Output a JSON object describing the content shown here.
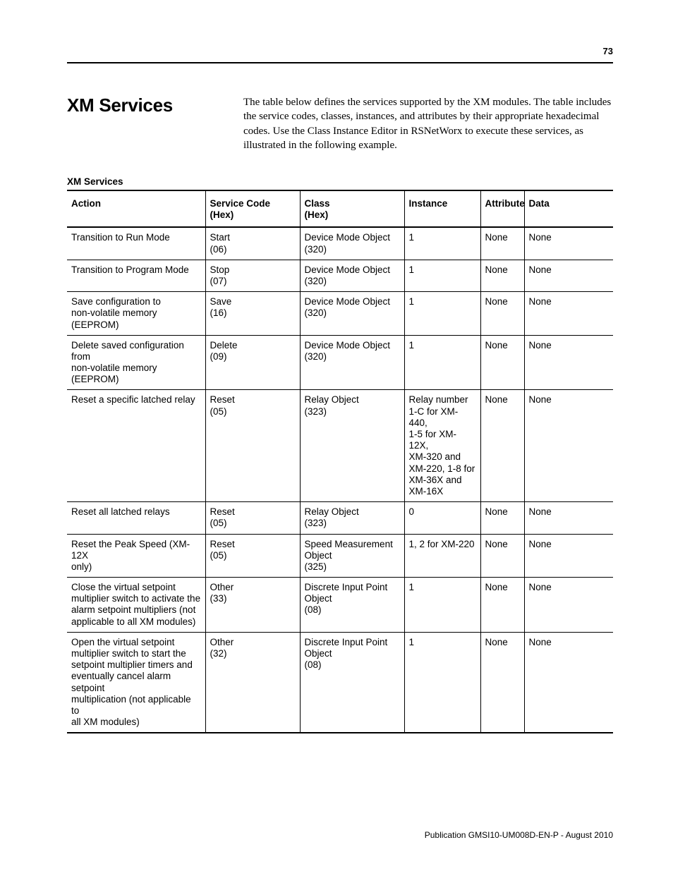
{
  "page_number": "73",
  "section_title": "XM Services",
  "intro_paragraph": "The table below defines the services supported by the XM modules. The table includes the service codes, classes, instances, and attributes by their appropriate hexadecimal codes. Use the Class Instance Editor in RSNetWorx to execute these services, as illustrated in the following example.",
  "table_caption": "XM Services",
  "publication_line": "Publication GMSI10-UM008D-EN-P - August 2010",
  "columns": [
    {
      "label_line1": "Action",
      "label_line2": ""
    },
    {
      "label_line1": "Service Code",
      "label_line2": "(Hex)"
    },
    {
      "label_line1": "Class",
      "label_line2": "(Hex)"
    },
    {
      "label_line1": "Instance",
      "label_line2": ""
    },
    {
      "label_line1": "Attribute",
      "label_line2": ""
    },
    {
      "label_line1": "Data",
      "label_line2": ""
    }
  ],
  "rows": [
    {
      "action": [
        "Transition to Run Mode"
      ],
      "service": [
        "Start",
        "(06)"
      ],
      "class": [
        "Device Mode Object",
        "(320)"
      ],
      "instance": [
        "1"
      ],
      "attribute": [
        "None"
      ],
      "data": [
        "None"
      ]
    },
    {
      "action": [
        "Transition to Program Mode"
      ],
      "service": [
        "Stop",
        "(07)"
      ],
      "class": [
        "Device Mode Object",
        "(320)"
      ],
      "instance": [
        "1"
      ],
      "attribute": [
        "None"
      ],
      "data": [
        "None"
      ]
    },
    {
      "action": [
        "Save configuration to",
        "non-volatile memory (EEPROM)"
      ],
      "service": [
        "Save",
        "(16)"
      ],
      "class": [
        "Device Mode Object",
        "(320)"
      ],
      "instance": [
        "1"
      ],
      "attribute": [
        "None"
      ],
      "data": [
        "None"
      ]
    },
    {
      "action": [
        "Delete saved configuration from",
        "non-volatile memory (EEPROM)"
      ],
      "service": [
        "Delete",
        "(09)"
      ],
      "class": [
        "Device Mode Object",
        "(320)"
      ],
      "instance": [
        "1"
      ],
      "attribute": [
        "None"
      ],
      "data": [
        "None"
      ]
    },
    {
      "action": [
        "Reset a specific latched relay"
      ],
      "service": [
        "Reset",
        "(05)"
      ],
      "class": [
        "Relay Object",
        "(323)"
      ],
      "instance": [
        "Relay number",
        "1-C for XM-440,",
        "1-5 for XM-12X,",
        "XM-320 and",
        "XM-220, 1-8 for",
        "XM-36X and",
        "XM-16X"
      ],
      "attribute": [
        "None"
      ],
      "data": [
        "None"
      ]
    },
    {
      "action": [
        "Reset all latched relays"
      ],
      "service": [
        "Reset",
        "(05)"
      ],
      "class": [
        "Relay Object",
        "(323)"
      ],
      "instance": [
        "0"
      ],
      "attribute": [
        "None"
      ],
      "data": [
        "None"
      ]
    },
    {
      "action": [
        "Reset the Peak Speed (XM-12X",
        "only)"
      ],
      "service": [
        "Reset",
        "(05)"
      ],
      "class": [
        "Speed Measurement",
        "Object",
        "(325)"
      ],
      "instance": [
        "1, 2 for XM-220"
      ],
      "attribute": [
        "None"
      ],
      "data": [
        "None"
      ]
    },
    {
      "action": [
        "Close the virtual setpoint",
        "multiplier switch to activate the",
        "alarm setpoint multipliers (not",
        "applicable to all XM modules)"
      ],
      "service": [
        "Other",
        "(33)"
      ],
      "class": [
        "Discrete Input Point",
        "Object",
        "(08)"
      ],
      "instance": [
        "1"
      ],
      "attribute": [
        "None"
      ],
      "data": [
        "None"
      ]
    },
    {
      "action": [
        "Open the virtual setpoint",
        "multiplier switch to start the",
        "setpoint multiplier timers and",
        "eventually cancel alarm setpoint",
        "multiplication (not applicable to",
        "all XM modules)"
      ],
      "service": [
        "Other",
        "(32)"
      ],
      "class": [
        "Discrete Input Point",
        "Object",
        "(08)"
      ],
      "instance": [
        "1"
      ],
      "attribute": [
        "None"
      ],
      "data": [
        "None"
      ]
    }
  ]
}
